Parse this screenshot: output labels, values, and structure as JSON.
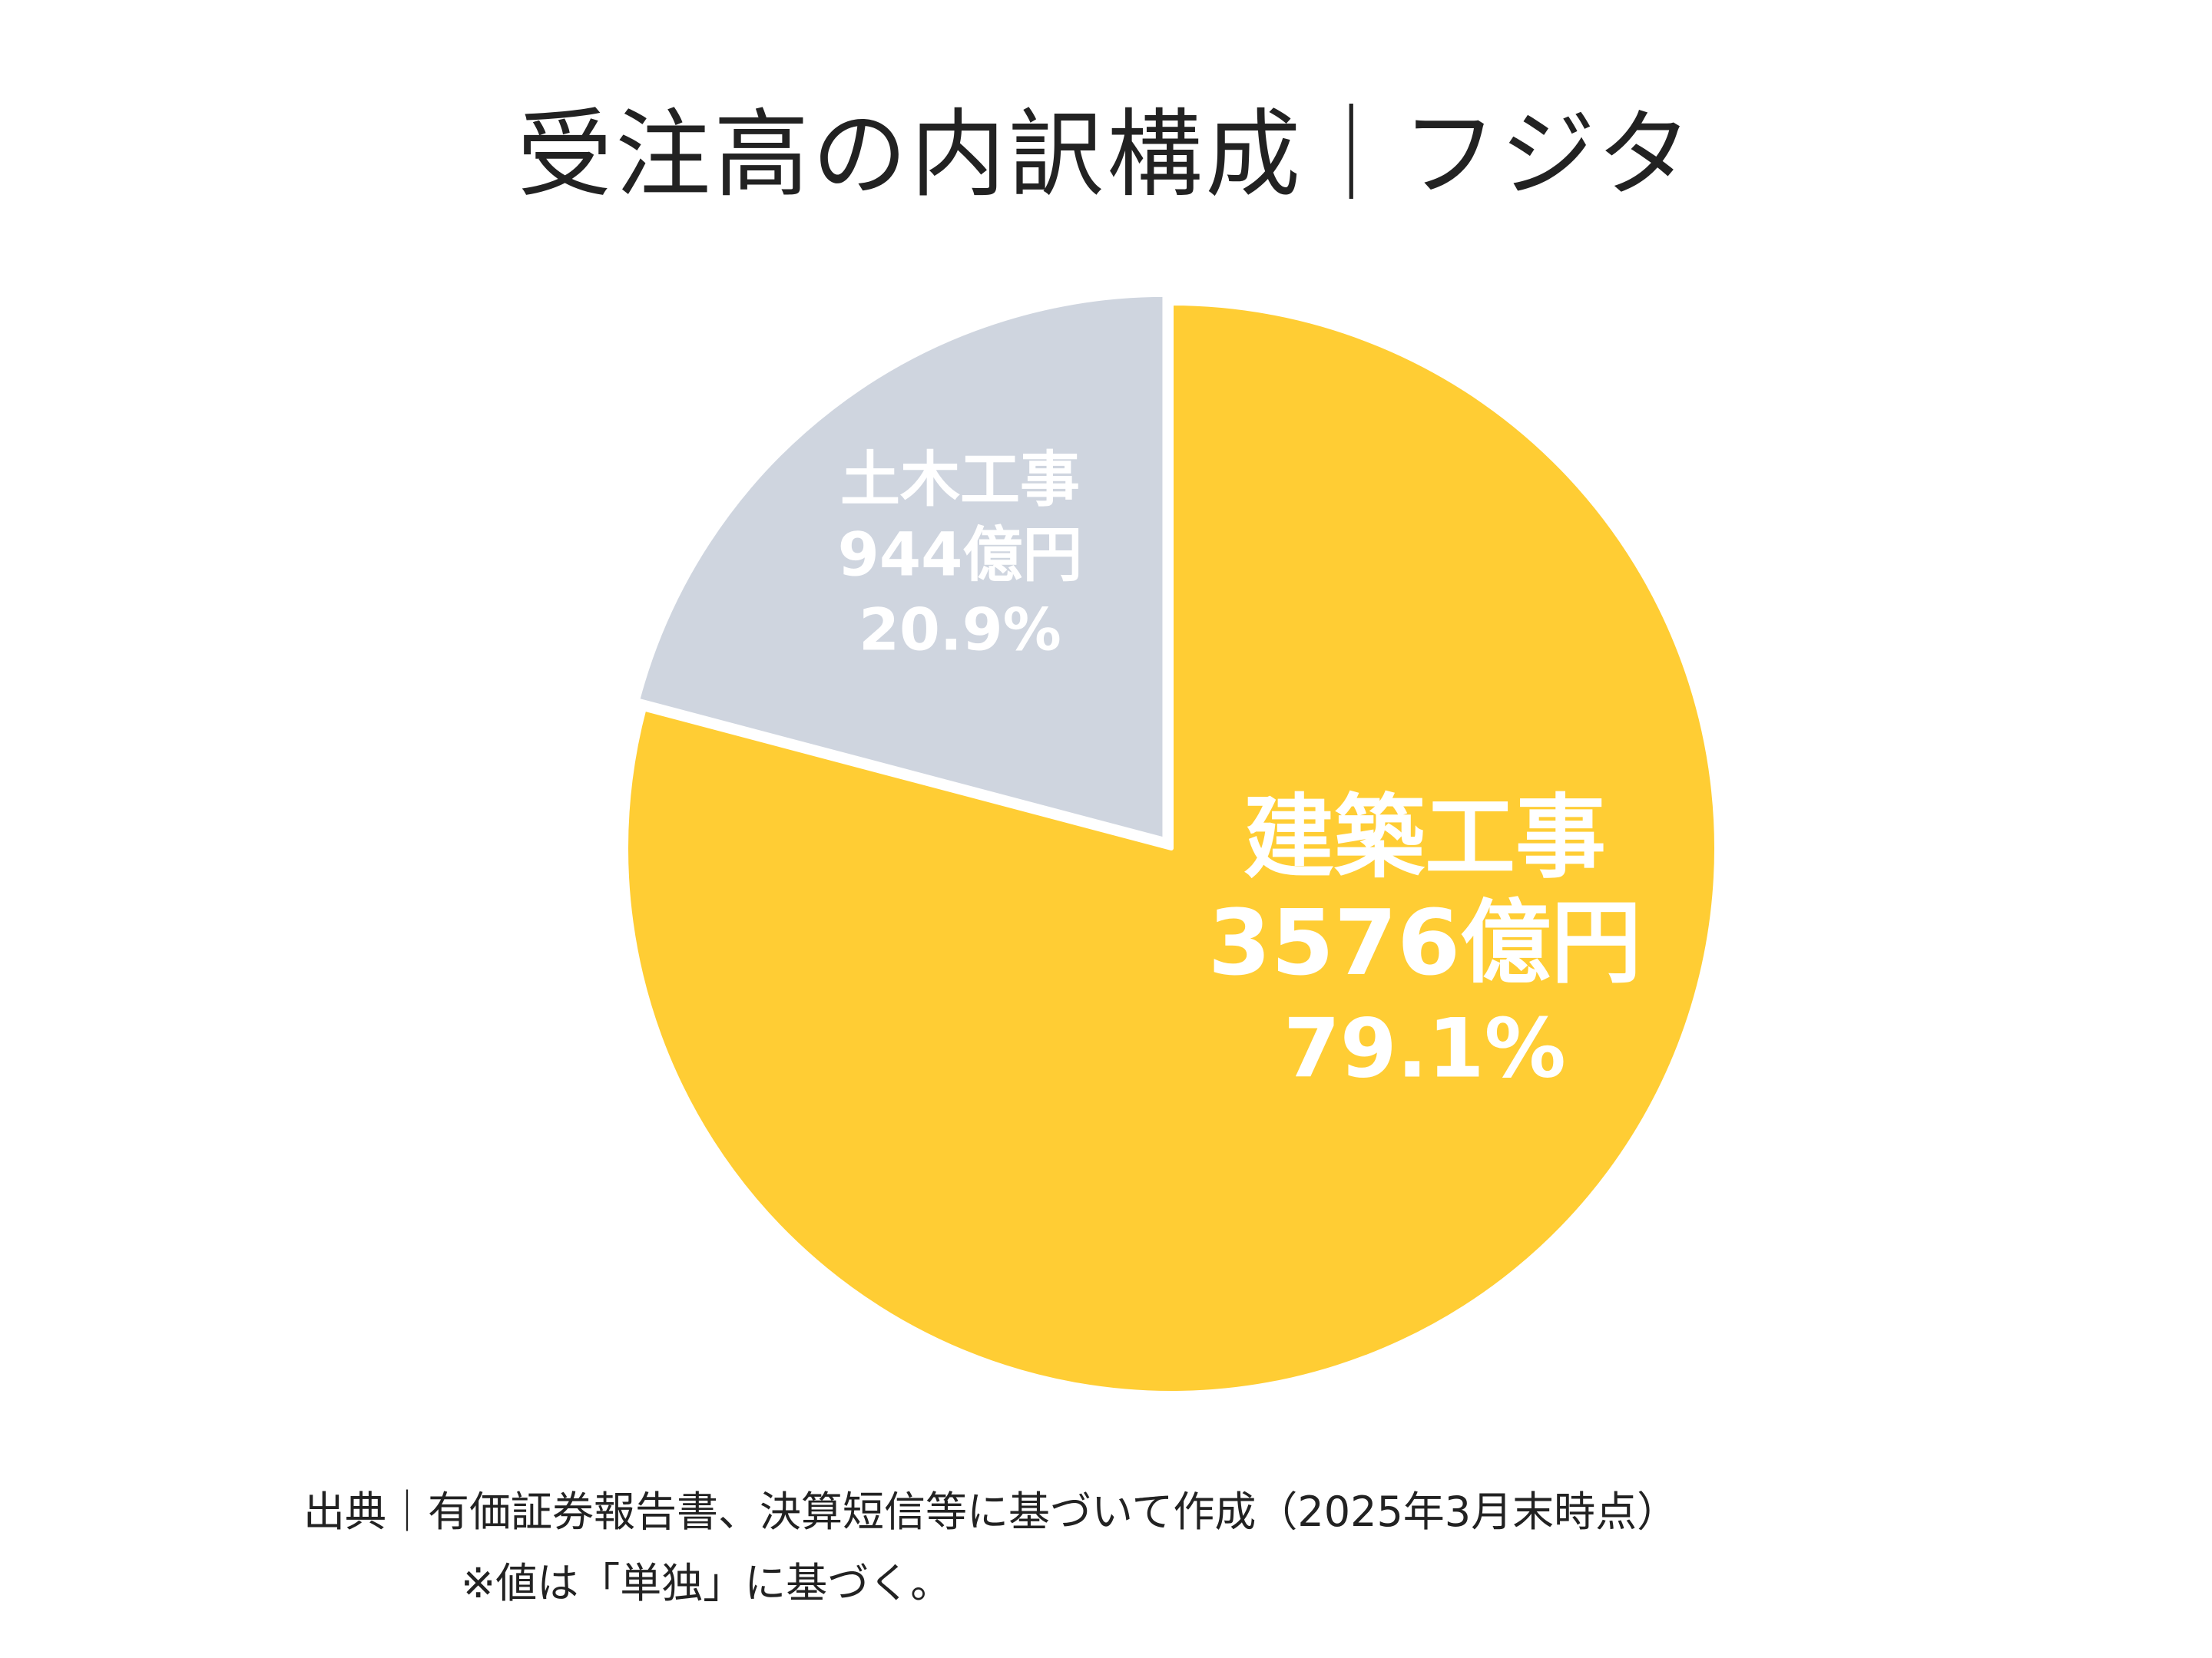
{
  "title": "受注高の内訳構成｜フジタ",
  "chart_data": {
    "type": "pie",
    "slices": [
      {
        "name": "建築工事",
        "value": 3576,
        "value_label": "3576億円",
        "percent_label": "79.1%",
        "color": "#FFCD34"
      },
      {
        "name": "土木工事",
        "value": 944,
        "value_label": "944億円",
        "percent_label": "20.9%",
        "color": "#CFD5DF"
      }
    ],
    "start_angle": "12 o'clock",
    "direction": "clockwise"
  },
  "source_note": "出典｜有価証券報告書、決算短信等に基づいて作成（2025年3月末時点）",
  "value_note": "※値は「単独」に基づく。"
}
